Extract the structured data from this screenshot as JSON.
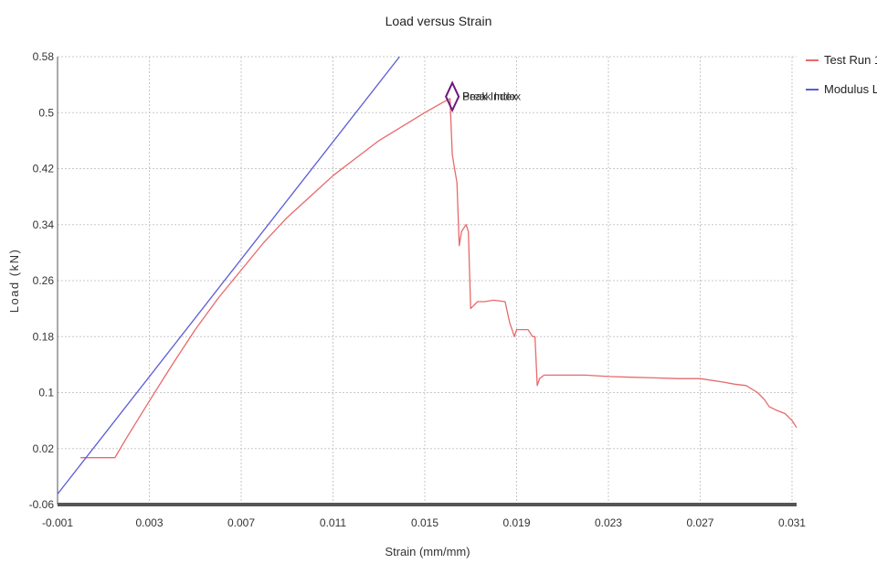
{
  "chart_data": {
    "type": "line",
    "title": "Load versus Strain",
    "xlabel": "Strain (mm/mm)",
    "ylabel": "Load (kN)",
    "xlim": [
      -0.001,
      0.0312
    ],
    "ylim": [
      -0.06,
      0.58
    ],
    "xticks": [
      -0.001,
      0.003,
      0.007,
      0.011,
      0.015,
      0.019,
      0.023,
      0.027,
      0.031
    ],
    "xtick_labels": [
      "-0.001",
      "0.003",
      "0.007",
      "0.011",
      "0.015",
      "0.019",
      "0.023",
      "0.027",
      "0.031"
    ],
    "yticks": [
      -0.06,
      0.02,
      0.1,
      0.18,
      0.26,
      0.34,
      0.42,
      0.5,
      0.58
    ],
    "ytick_labels": [
      "-0.06",
      "0.02",
      "0.1",
      "0.18",
      "0.26",
      "0.34",
      "0.42",
      "0.5",
      "0.58"
    ],
    "grid": true,
    "legend_position": "top-right",
    "series": [
      {
        "name": "Test Run 1",
        "color": "#e8696b",
        "x": [
          0.0,
          0.0015,
          0.002,
          0.003,
          0.004,
          0.005,
          0.006,
          0.007,
          0.008,
          0.009,
          0.01,
          0.011,
          0.012,
          0.013,
          0.014,
          0.015,
          0.0158,
          0.0161,
          0.0162,
          0.0163,
          0.0164,
          0.0165,
          0.0166,
          0.0168,
          0.0169,
          0.017,
          0.0173,
          0.0176,
          0.018,
          0.0185,
          0.0187,
          0.0188,
          0.0189,
          0.019,
          0.0195,
          0.0197,
          0.0198,
          0.0199,
          0.02,
          0.0202,
          0.0205,
          0.021,
          0.022,
          0.023,
          0.024,
          0.025,
          0.026,
          0.027,
          0.028,
          0.0285,
          0.029,
          0.0295,
          0.0298,
          0.03,
          0.0303,
          0.0307,
          0.031,
          0.0312
        ],
        "y": [
          0.007,
          0.007,
          0.035,
          0.088,
          0.14,
          0.19,
          0.235,
          0.275,
          0.315,
          0.35,
          0.38,
          0.41,
          0.435,
          0.46,
          0.48,
          0.5,
          0.515,
          0.52,
          0.44,
          0.42,
          0.4,
          0.31,
          0.33,
          0.34,
          0.33,
          0.22,
          0.23,
          0.23,
          0.232,
          0.23,
          0.2,
          0.19,
          0.18,
          0.19,
          0.19,
          0.18,
          0.18,
          0.11,
          0.12,
          0.125,
          0.125,
          0.125,
          0.125,
          0.123,
          0.122,
          0.121,
          0.12,
          0.12,
          0.115,
          0.112,
          0.11,
          0.1,
          0.09,
          0.08,
          0.075,
          0.07,
          0.06,
          0.05
        ]
      },
      {
        "name": "Modulus Line",
        "color": "#5b5bd6",
        "x": [
          -0.001,
          0.0139
        ],
        "y": [
          -0.045,
          0.58
        ]
      }
    ],
    "annotations": [
      {
        "label_a": "Peak Index",
        "label_b": "Break Index",
        "x": 0.0162,
        "y": 0.523,
        "marker": "diamond",
        "color": "#6a1a7a"
      }
    ]
  }
}
